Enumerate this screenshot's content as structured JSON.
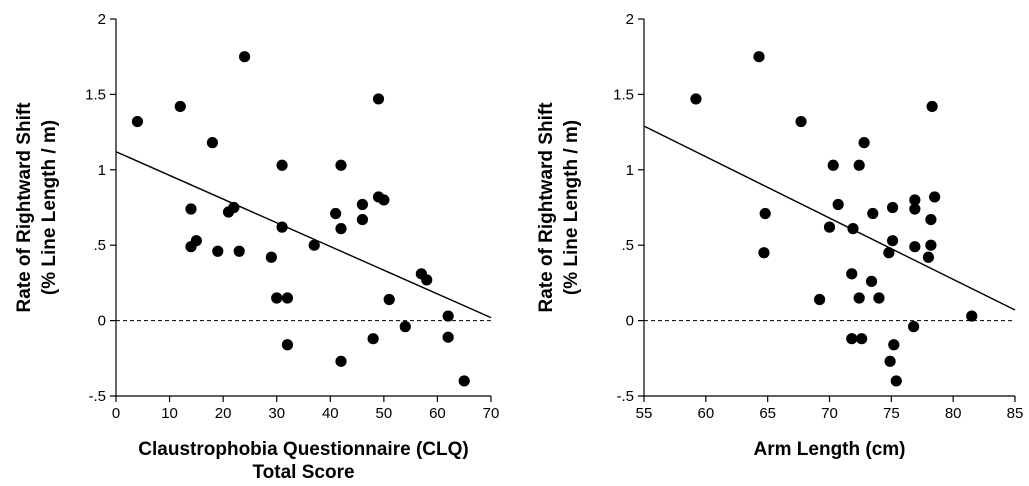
{
  "chart_data": [
    {
      "type": "scatter",
      "xlabel": [
        "Claustrophobia Questionnaire (CLQ)",
        "Total Score"
      ],
      "ylabel": [
        "Rate of Rightward Shift",
        "(% Line Length / m)"
      ],
      "xlim": [
        0,
        70
      ],
      "ylim": [
        -0.5,
        2
      ],
      "x_ticks": [
        "0",
        "10",
        "20",
        "30",
        "40",
        "50",
        "60",
        "70"
      ],
      "y_ticks": [
        "-.5",
        "0",
        ".5",
        "1",
        "1.5",
        "2"
      ],
      "grid": false,
      "legend": "none",
      "reference_line": {
        "y": 0,
        "style": "dashed"
      },
      "regression_line": {
        "x": [
          0,
          70
        ],
        "y": [
          1.12,
          0.02
        ]
      },
      "points": [
        {
          "x": 4,
          "y": 1.32
        },
        {
          "x": 12,
          "y": 1.42
        },
        {
          "x": 14,
          "y": 0.74
        },
        {
          "x": 14,
          "y": 0.49
        },
        {
          "x": 15,
          "y": 0.53
        },
        {
          "x": 18,
          "y": 1.18
        },
        {
          "x": 19,
          "y": 0.46
        },
        {
          "x": 21,
          "y": 0.72
        },
        {
          "x": 22,
          "y": 0.75
        },
        {
          "x": 23,
          "y": 0.46
        },
        {
          "x": 24,
          "y": 1.75
        },
        {
          "x": 29,
          "y": 0.42
        },
        {
          "x": 30,
          "y": 0.15
        },
        {
          "x": 31,
          "y": 1.03
        },
        {
          "x": 31,
          "y": 0.62
        },
        {
          "x": 32,
          "y": 0.15
        },
        {
          "x": 32,
          "y": -0.16
        },
        {
          "x": 37,
          "y": 0.5
        },
        {
          "x": 41,
          "y": 0.71
        },
        {
          "x": 42,
          "y": 1.03
        },
        {
          "x": 42,
          "y": 0.61
        },
        {
          "x": 42,
          "y": -0.27
        },
        {
          "x": 46,
          "y": 0.77
        },
        {
          "x": 46,
          "y": 0.67
        },
        {
          "x": 48,
          "y": -0.12
        },
        {
          "x": 49,
          "y": 1.47
        },
        {
          "x": 49,
          "y": 0.82
        },
        {
          "x": 50,
          "y": 0.8
        },
        {
          "x": 51,
          "y": 0.14
        },
        {
          "x": 54,
          "y": -0.04
        },
        {
          "x": 57,
          "y": 0.31
        },
        {
          "x": 58,
          "y": 0.27
        },
        {
          "x": 62,
          "y": 0.03
        },
        {
          "x": 62,
          "y": -0.11
        },
        {
          "x": 65,
          "y": -0.4
        }
      ]
    },
    {
      "type": "scatter",
      "xlabel": [
        "Arm Length (cm)"
      ],
      "ylabel": [
        "Rate of Rightward Shift",
        "(% Line Length / m)"
      ],
      "xlim": [
        55,
        85
      ],
      "ylim": [
        -0.5,
        2
      ],
      "x_ticks": [
        "55",
        "60",
        "65",
        "70",
        "75",
        "80",
        "85"
      ],
      "y_ticks": [
        "-.5",
        "0",
        ".5",
        "1",
        "1.5",
        "2"
      ],
      "grid": false,
      "legend": "none",
      "reference_line": {
        "y": 0,
        "style": "dashed"
      },
      "regression_line": {
        "x": [
          55,
          85
        ],
        "y": [
          1.29,
          0.07
        ]
      },
      "points": [
        {
          "x": 59.2,
          "y": 1.47
        },
        {
          "x": 64.3,
          "y": 1.75
        },
        {
          "x": 64.8,
          "y": 0.71
        },
        {
          "x": 64.7,
          "y": 0.45
        },
        {
          "x": 67.7,
          "y": 1.32
        },
        {
          "x": 69.2,
          "y": 0.14
        },
        {
          "x": 70.0,
          "y": 0.62
        },
        {
          "x": 70.3,
          "y": 1.03
        },
        {
          "x": 70.7,
          "y": 0.77
        },
        {
          "x": 71.8,
          "y": 0.31
        },
        {
          "x": 71.8,
          "y": -0.12
        },
        {
          "x": 71.9,
          "y": 0.61
        },
        {
          "x": 72.4,
          "y": 1.03
        },
        {
          "x": 72.4,
          "y": 0.15
        },
        {
          "x": 72.6,
          "y": -0.12
        },
        {
          "x": 72.8,
          "y": 1.18
        },
        {
          "x": 73.4,
          "y": 0.26
        },
        {
          "x": 73.5,
          "y": 0.71
        },
        {
          "x": 74.0,
          "y": 0.15
        },
        {
          "x": 74.8,
          "y": 0.45
        },
        {
          "x": 74.9,
          "y": -0.27
        },
        {
          "x": 75.1,
          "y": 0.75
        },
        {
          "x": 75.1,
          "y": 0.53
        },
        {
          "x": 75.2,
          "y": -0.16
        },
        {
          "x": 75.4,
          "y": -0.4
        },
        {
          "x": 76.8,
          "y": -0.04
        },
        {
          "x": 76.9,
          "y": 0.8
        },
        {
          "x": 76.9,
          "y": 0.74
        },
        {
          "x": 76.9,
          "y": 0.49
        },
        {
          "x": 78.0,
          "y": 0.42
        },
        {
          "x": 78.2,
          "y": 0.67
        },
        {
          "x": 78.2,
          "y": 0.5
        },
        {
          "x": 78.3,
          "y": 1.42
        },
        {
          "x": 78.5,
          "y": 0.82
        },
        {
          "x": 81.5,
          "y": 0.03
        }
      ]
    }
  ]
}
